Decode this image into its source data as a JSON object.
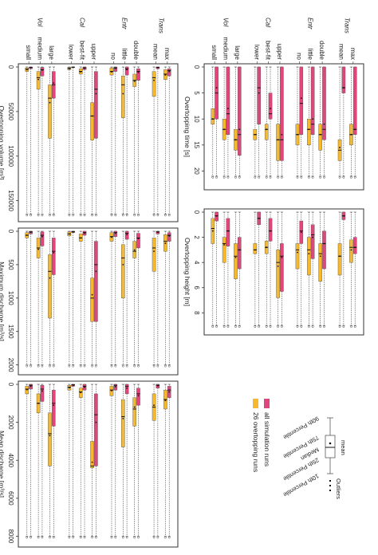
{
  "groups": [
    {
      "label": "Trans",
      "levels": [
        "max",
        "mean"
      ]
    },
    {
      "label": "Entr",
      "levels": [
        "double",
        "little",
        "no"
      ]
    },
    {
      "label": "Cal",
      "levels": [
        "upper",
        "best-fit",
        "lower"
      ]
    },
    {
      "label": "Vol",
      "levels": [
        "large",
        "medium",
        "small"
      ]
    }
  ],
  "legend": {
    "series": [
      {
        "name": "all simulation runs",
        "color": "#e0457b"
      },
      {
        "name": "26 overtopping runs",
        "color": "#f5b82e"
      }
    ],
    "box": {
      "outliers": "Outliers",
      "p90": "90th Percentile",
      "p75": "75th Percentile",
      "median": "Median",
      "mean": "mean",
      "p25": "25th Percentile",
      "p10": "10th Percentile"
    }
  },
  "chart_data": [
    {
      "type": "box",
      "xlabel": "Overtopping time [s]",
      "xlim": [
        0,
        23
      ],
      "ticks": [
        0,
        5,
        10,
        15,
        20
      ],
      "tick_labels": [
        "0",
        "5",
        "10",
        "15",
        "20"
      ],
      "series": [
        {
          "name": "all simulation runs",
          "color": "#e0457b",
          "boxes": [
            [
              0,
              0,
              12,
              13,
              21,
              12
            ],
            [
              0,
              0,
              4,
              5,
              21,
              4
            ],
            [
              0,
              0,
              12,
              14,
              21,
              11
            ],
            [
              0,
              0,
              11,
              13,
              21,
              10
            ],
            [
              0,
              0,
              7,
              13,
              21,
              6
            ],
            [
              0,
              0,
              14,
              18,
              21,
              13
            ],
            [
              0,
              5,
              9,
              10,
              21,
              8
            ],
            [
              0,
              0,
              4,
              11,
              21,
              5
            ],
            [
              0,
              0,
              13,
              17,
              21,
              12
            ],
            [
              0,
              0,
              9,
              13,
              21,
              8
            ],
            [
              0,
              0,
              5,
              10,
              21,
              4
            ]
          ]
        },
        {
          "name": "26 overtopping runs",
          "color": "#f5b82e",
          "boxes": [
            [
              0,
              11,
              13,
              15,
              21,
              13
            ],
            [
              0,
              14,
              16,
              18,
              21,
              15.5
            ],
            [
              0,
              11,
              13,
              16,
              21,
              13
            ],
            [
              0,
              10,
              12,
              15,
              21,
              12
            ],
            [
              0,
              11,
              13,
              15,
              21,
              13
            ],
            [
              0,
              11,
              14,
              18,
              21,
              14
            ],
            [
              0,
              11,
              12,
              14,
              21,
              12
            ],
            [
              0,
              12,
              13,
              14,
              21,
              13
            ],
            [
              0,
              12,
              14,
              16,
              21,
              14
            ],
            [
              0,
              10,
              12,
              14,
              21,
              12
            ],
            [
              0,
              8,
              10,
              11,
              21,
              10
            ]
          ]
        }
      ]
    },
    {
      "type": "box",
      "xlabel": "Overtopping height [m]",
      "xlim": [
        0,
        9.5
      ],
      "ticks": [
        0,
        2,
        4,
        6,
        8
      ],
      "tick_labels": [
        "0",
        "2",
        "4",
        "6",
        "8"
      ],
      "series": [
        {
          "name": "all simulation runs",
          "color": "#e0457b",
          "boxes": [
            [
              0,
              2.0,
              2.8,
              3.3,
              9,
              2.8
            ],
            [
              0,
              0,
              0.3,
              0.6,
              9,
              0.3
            ],
            [
              0,
              1.5,
              2.5,
              4.5,
              9,
              2.5
            ],
            [
              0,
              1.0,
              1.8,
              3.7,
              9,
              2.0
            ],
            [
              0,
              0.7,
              1.5,
              2.5,
              9,
              1.6
            ],
            [
              0,
              2.5,
              3.5,
              6.3,
              9,
              3.6
            ],
            [
              0,
              0.5,
              1.5,
              2.3,
              9,
              1.5
            ],
            [
              0,
              0,
              0.5,
              1.0,
              9,
              0.5
            ],
            [
              0,
              2.0,
              3.0,
              4.5,
              9,
              3.0
            ],
            [
              0,
              0.5,
              1.5,
              2.7,
              9,
              1.5
            ],
            [
              0,
              0,
              0.3,
              0.7,
              9,
              0.3
            ]
          ]
        },
        {
          "name": "26 overtopping runs",
          "color": "#f5b82e",
          "boxes": [
            [
              0,
              2.2,
              2.8,
              4.0,
              9,
              3.0
            ],
            [
              0,
              2.5,
              3.5,
              5.0,
              9,
              3.5
            ],
            [
              0,
              2.5,
              3.3,
              5.5,
              9,
              3.5
            ],
            [
              0,
              2.0,
              3.0,
              5.0,
              9,
              3.3
            ],
            [
              0,
              2.5,
              3.0,
              4.5,
              9,
              3.2
            ],
            [
              0,
              3.0,
              4.0,
              6.8,
              9,
              4.3
            ],
            [
              0,
              2.3,
              2.8,
              3.3,
              9,
              2.8
            ],
            [
              0,
              2.5,
              3.0,
              3.3,
              9,
              3.0
            ],
            [
              0,
              2.5,
              3.5,
              5.3,
              9,
              3.6
            ],
            [
              0,
              2.0,
              2.5,
              4.0,
              9,
              2.6
            ],
            [
              0,
              0.5,
              1.3,
              2.5,
              9,
              1.5
            ]
          ]
        }
      ]
    },
    {
      "type": "box",
      "xlabel": "Overtopping volume [m³]",
      "xlim": [
        0,
        170000
      ],
      "ticks": [
        0,
        50000,
        100000,
        150000
      ],
      "tick_labels": [
        "0",
        "50000",
        "100000",
        "150000"
      ],
      "series": [
        {
          "name": "all simulation runs",
          "color": "#e0457b",
          "boxes": [
            [
              0,
              2000,
              4000,
              10000,
              165000,
              5000
            ],
            [
              0,
              0,
              500,
              2000,
              165000,
              800
            ],
            [
              0,
              2000,
              5000,
              15000,
              165000,
              6000
            ],
            [
              0,
              0,
              2000,
              9000,
              165000,
              3000
            ],
            [
              0,
              0,
              1000,
              5000,
              165000,
              1500
            ],
            [
              0,
              5000,
              25000,
              80000,
              165000,
              30000
            ],
            [
              0,
              0,
              1000,
              3000,
              165000,
              1500
            ],
            [
              0,
              0,
              200,
              700,
              165000,
              400
            ],
            [
              0,
              5000,
              20000,
              35000,
              165000,
              18000
            ],
            [
              0,
              500,
              3000,
              10000,
              165000,
              3500
            ],
            [
              0,
              0,
              500,
              2000,
              165000,
              800
            ]
          ]
        },
        {
          "name": "26 overtopping runs",
          "color": "#f5b82e",
          "boxes": [
            [
              0,
              3000,
              8000,
              14000,
              165000,
              9000
            ],
            [
              0,
              5000,
              12000,
              33000,
              165000,
              15000
            ],
            [
              0,
              8000,
              15000,
              22000,
              165000,
              16000
            ],
            [
              0,
              10000,
              20000,
              57000,
              165000,
              30000
            ],
            [
              0,
              1000,
              5000,
              9000,
              165000,
              5500
            ],
            [
              0,
              40000,
              55000,
              82000,
              165000,
              55000
            ],
            [
              0,
              2000,
              5000,
              8000,
              165000,
              5500
            ],
            [
              0,
              500,
              1500,
              3000,
              165000,
              2000
            ],
            [
              0,
              20000,
              35000,
              80000,
              165000,
              40000
            ],
            [
              0,
              5000,
              12000,
              25000,
              165000,
              14000
            ],
            [
              0,
              1000,
              2500,
              5000,
              165000,
              3000
            ]
          ]
        }
      ]
    },
    {
      "type": "box",
      "xlabel": "Maximum discharge [m³/s]",
      "xlim": [
        0,
        2100
      ],
      "ticks": [
        0,
        500,
        1000,
        1500,
        2000
      ],
      "tick_labels": [
        "0",
        "500",
        "1000",
        "1500",
        "2000"
      ],
      "series": [
        {
          "name": "all simulation runs",
          "color": "#e0457b",
          "boxes": [
            [
              0,
              20,
              60,
              150,
              2000,
              70
            ],
            [
              0,
              0,
              10,
              40,
              2000,
              15
            ],
            [
              0,
              30,
              100,
              250,
              2000,
              110
            ],
            [
              0,
              0,
              30,
              120,
              2000,
              50
            ],
            [
              0,
              0,
              20,
              80,
              2000,
              30
            ],
            [
              0,
              150,
              500,
              1350,
              2000,
              600
            ],
            [
              0,
              0,
              20,
              60,
              2000,
              30
            ],
            [
              0,
              0,
              5,
              20,
              2000,
              10
            ],
            [
              0,
              100,
              300,
              650,
              2000,
              320
            ],
            [
              0,
              10,
              60,
              220,
              2000,
              80
            ],
            [
              0,
              0,
              10,
              40,
              2000,
              15
            ]
          ]
        },
        {
          "name": "26 overtopping runs",
          "color": "#f5b82e",
          "boxes": [
            [
              0,
              50,
              150,
              300,
              2000,
              180
            ],
            [
              0,
              100,
              250,
              600,
              2000,
              300
            ],
            [
              0,
              150,
              300,
              400,
              2000,
              280
            ],
            [
              0,
              200,
              400,
              1000,
              2000,
              500
            ],
            [
              0,
              20,
              80,
              150,
              2000,
              90
            ],
            [
              0,
              700,
              1000,
              1350,
              2000,
              950
            ],
            [
              0,
              40,
              100,
              150,
              2000,
              100
            ],
            [
              0,
              10,
              40,
              70,
              2000,
              40
            ],
            [
              0,
              350,
              600,
              1300,
              2000,
              700
            ],
            [
              0,
              100,
              250,
              400,
              2000,
              270
            ],
            [
              0,
              20,
              60,
              100,
              2000,
              60
            ]
          ]
        }
      ]
    },
    {
      "type": "box",
      "xlabel": "Mean discharge [m³/s]",
      "xlim": [
        0,
        8400
      ],
      "ticks": [
        0,
        2000,
        4000,
        6000,
        8000
      ],
      "tick_labels": [
        "0",
        "2000",
        "4000",
        "6000",
        "8000"
      ],
      "series": [
        {
          "name": "all simulation runs",
          "color": "#e0457b",
          "boxes": [
            [
              0,
              100,
              300,
              700,
              8000,
              400
            ],
            [
              0,
              0,
              50,
              200,
              8000,
              80
            ],
            [
              0,
              200,
              500,
              1100,
              8000,
              600
            ],
            [
              0,
              0,
              100,
              500,
              8000,
              200
            ],
            [
              0,
              0,
              50,
              300,
              8000,
              120
            ],
            [
              0,
              500,
              1600,
              4300,
              8000,
              2000
            ],
            [
              0,
              0,
              100,
              300,
              8000,
              150
            ],
            [
              0,
              0,
              20,
              100,
              8000,
              50
            ],
            [
              0,
              300,
              1000,
              2200,
              8000,
              1100
            ],
            [
              0,
              50,
              250,
              900,
              8000,
              350
            ],
            [
              0,
              0,
              50,
              250,
              8000,
              100
            ]
          ]
        },
        {
          "name": "26 overtopping runs",
          "color": "#f5b82e",
          "boxes": [
            [
              0,
              300,
              800,
              1300,
              8000,
              850
            ],
            [
              0,
              500,
              1200,
              1900,
              8000,
              1100
            ],
            [
              0,
              700,
              1300,
              2200,
              8000,
              1200
            ],
            [
              0,
              800,
              1700,
              3300,
              8000,
              1800
            ],
            [
              0,
              100,
              300,
              600,
              8000,
              330
            ],
            [
              0,
              3000,
              4300,
              4400,
              8000,
              4100
            ],
            [
              0,
              200,
              400,
              700,
              8000,
              430
            ],
            [
              0,
              50,
              150,
              300,
              8000,
              180
            ],
            [
              0,
              1500,
              2600,
              4300,
              8000,
              2700
            ],
            [
              0,
              500,
              1000,
              1500,
              8000,
              1000
            ],
            [
              0,
              100,
              250,
              500,
              8000,
              280
            ]
          ]
        }
      ]
    }
  ]
}
